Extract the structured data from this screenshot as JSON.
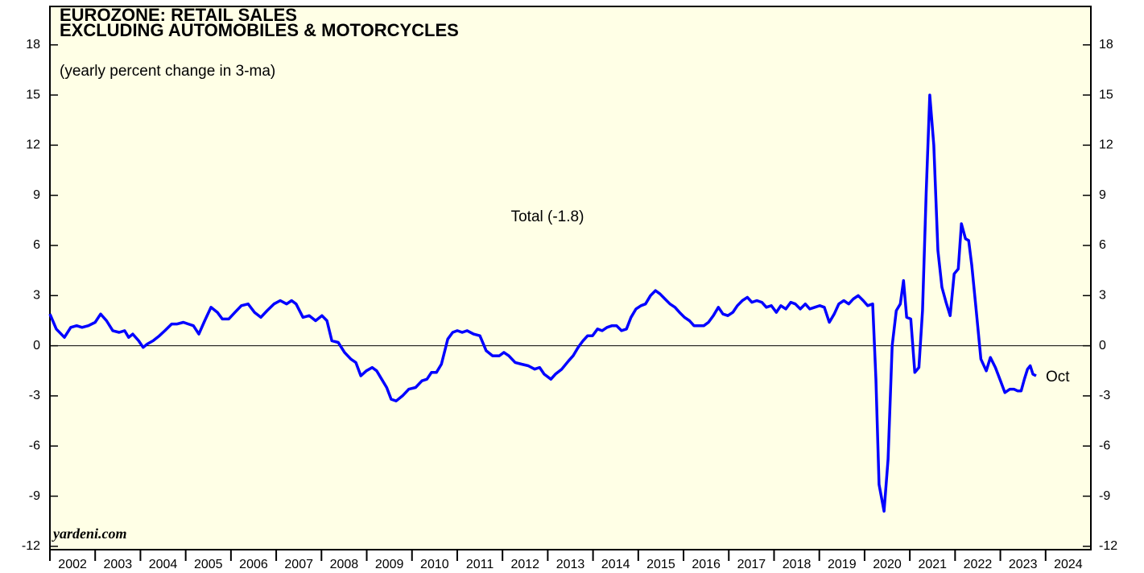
{
  "chart_data": {
    "type": "line",
    "title": "EUROZONE: RETAIL SALES",
    "title_line2": "EXCLUDING AUTOMOBILES & MOTORCYCLES",
    "subtitle": "(yearly percent change in 3-ma)",
    "annotation": "Total (-1.8)",
    "end_label": "Oct",
    "source": "yardeni.com",
    "xlim": [
      2002,
      2025
    ],
    "xticks": [
      2002,
      2003,
      2004,
      2005,
      2006,
      2007,
      2008,
      2009,
      2010,
      2011,
      2012,
      2013,
      2014,
      2015,
      2016,
      2017,
      2018,
      2019,
      2020,
      2021,
      2022,
      2023,
      2024
    ],
    "ylim": [
      -12.2,
      20.3
    ],
    "yticks": [
      -12,
      -9,
      -6,
      -3,
      0,
      3,
      6,
      9,
      12,
      15,
      18
    ],
    "series": [
      {
        "name": "Total",
        "color": "#0000ff",
        "x": [
          2002.0,
          2002.14,
          2002.32,
          2002.46,
          2002.59,
          2002.71,
          2002.85,
          2003.0,
          2003.12,
          2003.25,
          2003.39,
          2003.53,
          2003.65,
          2003.74,
          2003.83,
          2003.96,
          2004.06,
          2004.15,
          2004.28,
          2004.42,
          2004.54,
          2004.69,
          2004.81,
          2004.95,
          2005.06,
          2005.17,
          2005.29,
          2005.42,
          2005.56,
          2005.7,
          2005.81,
          2005.95,
          2006.09,
          2006.23,
          2006.38,
          2006.52,
          2006.66,
          2006.8,
          2006.95,
          2007.09,
          2007.23,
          2007.34,
          2007.44,
          2007.59,
          2007.73,
          2007.87,
          2008.01,
          2008.12,
          2008.23,
          2008.37,
          2008.51,
          2008.65,
          2008.76,
          2008.87,
          2008.99,
          2009.12,
          2009.22,
          2009.33,
          2009.44,
          2009.54,
          2009.65,
          2009.79,
          2009.93,
          2010.08,
          2010.22,
          2010.33,
          2010.43,
          2010.54,
          2010.65,
          2010.79,
          2010.9,
          2011.0,
          2011.11,
          2011.22,
          2011.36,
          2011.5,
          2011.64,
          2011.78,
          2011.93,
          2012.03,
          2012.14,
          2012.28,
          2012.42,
          2012.57,
          2012.71,
          2012.82,
          2012.92,
          2013.07,
          2013.17,
          2013.31,
          2013.46,
          2013.56,
          2013.67,
          2013.78,
          2013.88,
          2013.99,
          2014.1,
          2014.2,
          2014.31,
          2014.42,
          2014.52,
          2014.63,
          2014.74,
          2014.84,
          2014.95,
          2015.06,
          2015.16,
          2015.27,
          2015.38,
          2015.48,
          2015.59,
          2015.7,
          2015.81,
          2015.91,
          2016.02,
          2016.13,
          2016.23,
          2016.34,
          2016.45,
          2016.55,
          2016.66,
          2016.77,
          2016.87,
          2016.98,
          2017.09,
          2017.19,
          2017.3,
          2017.41,
          2017.51,
          2017.62,
          2017.73,
          2017.83,
          2017.94,
          2018.05,
          2018.15,
          2018.26,
          2018.37,
          2018.47,
          2018.58,
          2018.69,
          2018.79,
          2018.9,
          2019.01,
          2019.11,
          2019.22,
          2019.33,
          2019.43,
          2019.54,
          2019.65,
          2019.75,
          2019.86,
          2019.97,
          2020.07,
          2020.18,
          2020.25,
          2020.32,
          2020.43,
          2020.52,
          2020.61,
          2020.7,
          2020.79,
          2020.86,
          2020.93,
          2021.02,
          2021.11,
          2021.2,
          2021.28,
          2021.36,
          2021.44,
          2021.53,
          2021.62,
          2021.71,
          2021.8,
          2021.89,
          2021.98,
          2022.07,
          2022.14,
          2022.23,
          2022.3,
          2022.37,
          2022.46,
          2022.57,
          2022.69,
          2022.78,
          2022.89,
          2022.99,
          2023.1,
          2023.21,
          2023.3,
          2023.38,
          2023.46,
          2023.53,
          2023.6,
          2023.66,
          2023.72,
          2023.79
        ],
        "values": [
          1.9,
          1.0,
          0.5,
          1.1,
          1.2,
          1.1,
          1.2,
          1.4,
          1.9,
          1.5,
          0.9,
          0.8,
          0.9,
          0.5,
          0.7,
          0.3,
          -0.1,
          0.1,
          0.3,
          0.6,
          0.9,
          1.3,
          1.3,
          1.4,
          1.3,
          1.2,
          0.7,
          1.5,
          2.3,
          2.0,
          1.6,
          1.6,
          2.0,
          2.4,
          2.5,
          2.0,
          1.7,
          2.1,
          2.5,
          2.7,
          2.5,
          2.7,
          2.5,
          1.7,
          1.8,
          1.5,
          1.8,
          1.5,
          0.3,
          0.2,
          -0.4,
          -0.8,
          -1.0,
          -1.8,
          -1.5,
          -1.3,
          -1.5,
          -2.0,
          -2.5,
          -3.2,
          -3.3,
          -3.0,
          -2.6,
          -2.5,
          -2.1,
          -2.0,
          -1.6,
          -1.6,
          -1.1,
          0.4,
          0.8,
          0.9,
          0.8,
          0.9,
          0.7,
          0.6,
          -0.3,
          -0.6,
          -0.6,
          -0.4,
          -0.6,
          -1.0,
          -1.1,
          -1.2,
          -1.4,
          -1.3,
          -1.7,
          -2.0,
          -1.7,
          -1.4,
          -0.9,
          -0.6,
          -0.1,
          0.3,
          0.6,
          0.6,
          1.0,
          0.9,
          1.1,
          1.2,
          1.2,
          0.9,
          1.0,
          1.7,
          2.2,
          2.4,
          2.5,
          3.0,
          3.3,
          3.1,
          2.8,
          2.5,
          2.3,
          2.0,
          1.7,
          1.5,
          1.2,
          1.2,
          1.2,
          1.4,
          1.8,
          2.3,
          1.9,
          1.8,
          2.0,
          2.4,
          2.7,
          2.9,
          2.6,
          2.7,
          2.6,
          2.3,
          2.4,
          2.0,
          2.4,
          2.2,
          2.6,
          2.5,
          2.2,
          2.5,
          2.2,
          2.3,
          2.4,
          2.3,
          1.4,
          1.9,
          2.5,
          2.7,
          2.5,
          2.8,
          3.0,
          2.7,
          2.4,
          2.5,
          -2.0,
          -8.3,
          -9.9,
          -6.8,
          0,
          2.1,
          2.5,
          3.9,
          1.7,
          1.6,
          -1.6,
          -1.3,
          2.1,
          9.1,
          15.0,
          12.0,
          5.7,
          3.5,
          2.6,
          1.8,
          4.3,
          4.6,
          7.3,
          6.4,
          6.3,
          4.8,
          2.3,
          -0.8,
          -1.5,
          -0.7,
          -1.3,
          -2.0,
          -2.8,
          -2.6,
          -2.6,
          -2.7,
          -2.7,
          -2.0,
          -1.4,
          -1.2,
          -1.7,
          -1.8
        ]
      }
    ]
  }
}
